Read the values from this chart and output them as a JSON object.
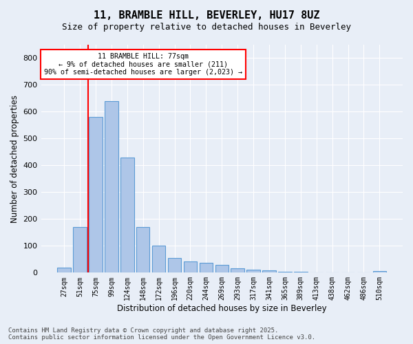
{
  "title_line1": "11, BRAMBLE HILL, BEVERLEY, HU17 8UZ",
  "title_line2": "Size of property relative to detached houses in Beverley",
  "xlabel": "Distribution of detached houses by size in Beverley",
  "ylabel": "Number of detached properties",
  "bar_labels": [
    "27sqm",
    "51sqm",
    "75sqm",
    "99sqm",
    "124sqm",
    "148sqm",
    "172sqm",
    "196sqm",
    "220sqm",
    "244sqm",
    "269sqm",
    "293sqm",
    "317sqm",
    "341sqm",
    "365sqm",
    "389sqm",
    "413sqm",
    "438sqm",
    "462sqm",
    "486sqm",
    "510sqm"
  ],
  "bar_values": [
    20,
    170,
    580,
    640,
    430,
    170,
    102,
    55,
    42,
    36,
    28,
    15,
    12,
    8,
    4,
    3,
    2,
    1,
    1,
    1,
    7
  ],
  "bar_color": "#aec6e8",
  "bar_edge_color": "#5b9bd5",
  "vline_index": 2,
  "vline_color": "red",
  "annotation_text": "11 BRAMBLE HILL: 77sqm\n← 9% of detached houses are smaller (211)\n90% of semi-detached houses are larger (2,023) →",
  "annotation_box_color": "red",
  "annotation_bg": "white",
  "ylim": [
    0,
    850
  ],
  "yticks": [
    0,
    100,
    200,
    300,
    400,
    500,
    600,
    700,
    800
  ],
  "background_color": "#e8eef7",
  "grid_color": "white",
  "footer_line1": "Contains HM Land Registry data © Crown copyright and database right 2025.",
  "footer_line2": "Contains public sector information licensed under the Open Government Licence v3.0."
}
